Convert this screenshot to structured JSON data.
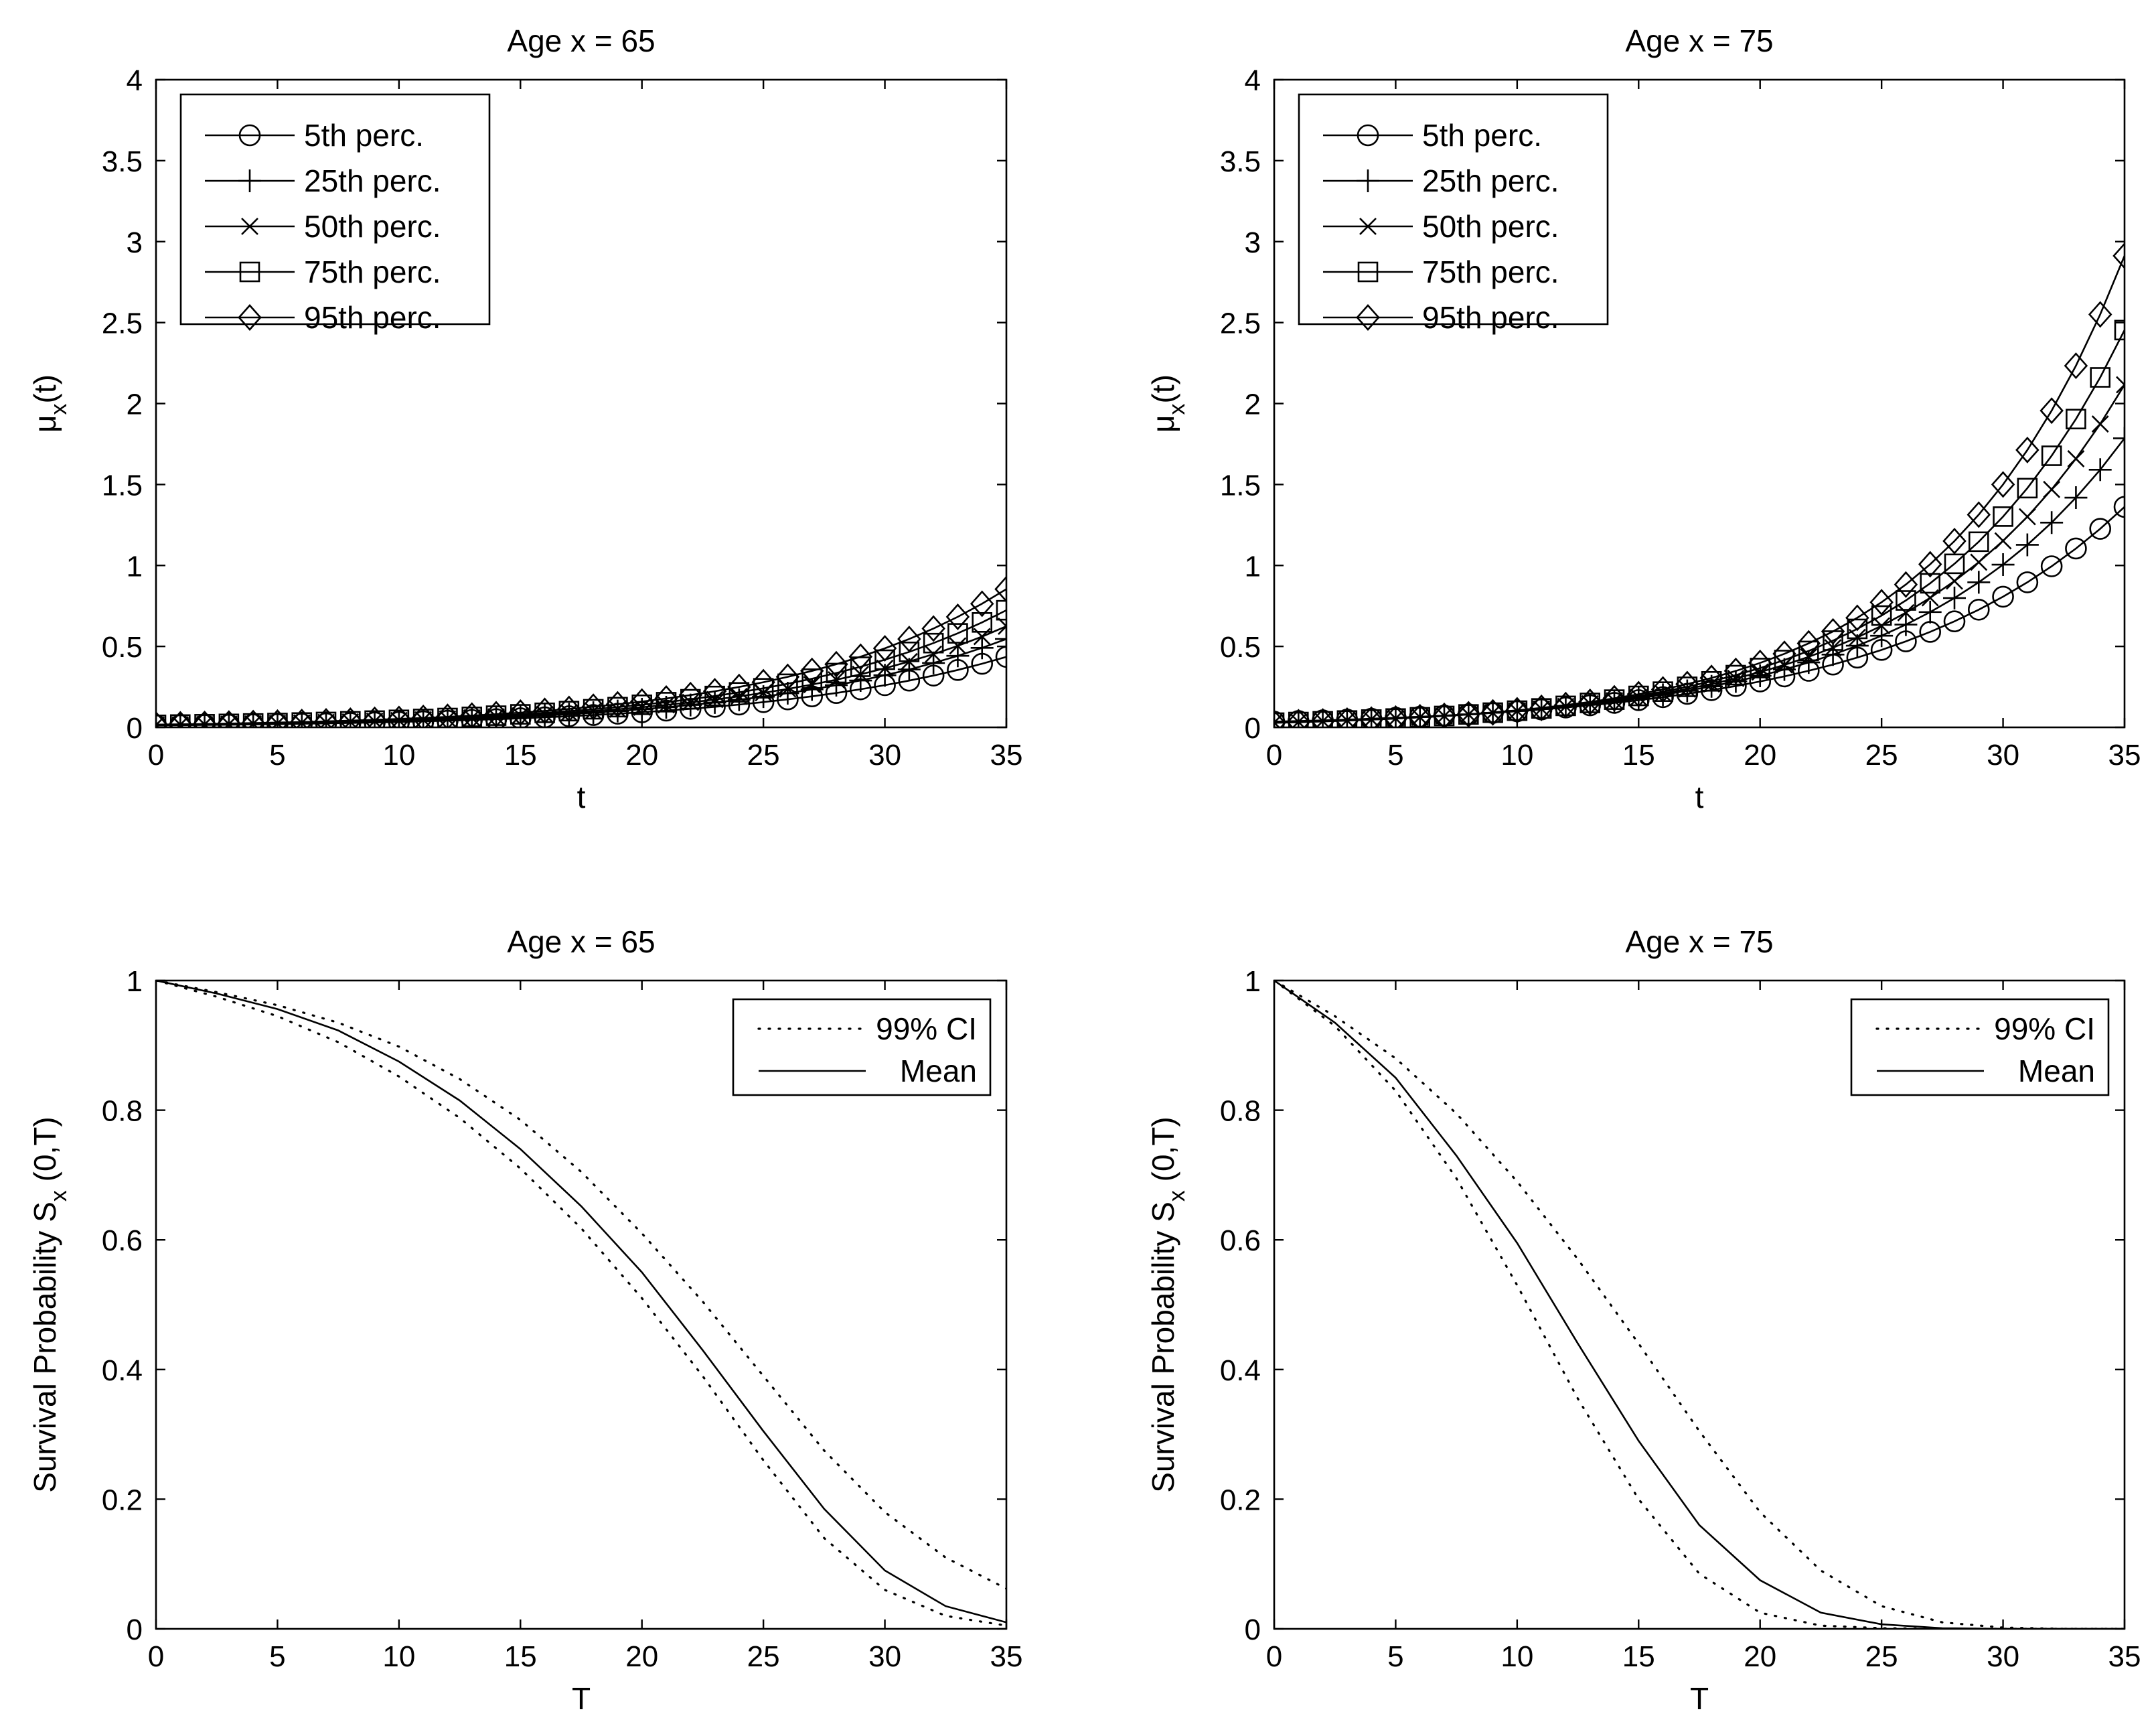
{
  "chart_data": [
    {
      "type": "line",
      "title": "Age x = 65",
      "xlabel": "t",
      "ylabel": {
        "base": "μ",
        "sub": "x",
        "rest": "(t)"
      },
      "xlim": [
        0,
        35
      ],
      "ylim": [
        0,
        4
      ],
      "xticks": [
        0,
        5,
        10,
        15,
        20,
        25,
        30,
        35
      ],
      "yticks": [
        0,
        0.5,
        1,
        1.5,
        2,
        2.5,
        3,
        3.5,
        4
      ],
      "legend_position": "top-left",
      "series": [
        {
          "name": "5th perc.",
          "marker": "circle",
          "line": "solid",
          "a": 0.012,
          "b": 0.1026
        },
        {
          "name": "25th perc.",
          "marker": "plus",
          "line": "solid",
          "a": 0.0135,
          "b": 0.1057
        },
        {
          "name": "50th perc.",
          "marker": "x",
          "line": "solid",
          "a": 0.0145,
          "b": 0.1075
        },
        {
          "name": "75th perc.",
          "marker": "square",
          "line": "solid",
          "a": 0.0155,
          "b": 0.1098
        },
        {
          "name": "95th perc.",
          "marker": "diamond",
          "line": "solid",
          "a": 0.017,
          "b": 0.1119
        }
      ]
    },
    {
      "type": "line",
      "title": "Age x = 75",
      "xlabel": "t",
      "ylabel": {
        "base": "μ",
        "sub": "x",
        "rest": "(t)"
      },
      "xlim": [
        0,
        35
      ],
      "ylim": [
        0,
        4
      ],
      "xticks": [
        0,
        5,
        10,
        15,
        20,
        25,
        30,
        35
      ],
      "yticks": [
        0,
        0.5,
        1,
        1.5,
        2,
        2.5,
        3,
        3.5,
        4
      ],
      "legend_position": "top-left",
      "series": [
        {
          "name": "5th perc.",
          "marker": "circle",
          "line": "solid",
          "a": 0.035,
          "b": 0.1046
        },
        {
          "name": "25th perc.",
          "marker": "plus",
          "line": "solid",
          "a": 0.032,
          "b": 0.1149
        },
        {
          "name": "50th perc.",
          "marker": "x",
          "line": "solid",
          "a": 0.03,
          "b": 0.1216
        },
        {
          "name": "75th perc.",
          "marker": "square",
          "line": "solid",
          "a": 0.029,
          "b": 0.1268
        },
        {
          "name": "95th perc.",
          "marker": "diamond",
          "line": "solid",
          "a": 0.028,
          "b": 0.1327
        }
      ]
    },
    {
      "type": "line",
      "title": "Age x = 65",
      "xlabel": "T",
      "ylabel": {
        "base": "Survival Probability  S",
        "sub": "x",
        "rest": " (0,T)"
      },
      "xlim": [
        0,
        35
      ],
      "ylim": [
        0,
        1
      ],
      "xticks": [
        0,
        5,
        10,
        15,
        20,
        25,
        30,
        35
      ],
      "yticks": [
        0,
        0.2,
        0.4,
        0.6,
        0.8,
        1
      ],
      "legend_position": "top-right",
      "series": [
        {
          "name": "99% CI",
          "line": "dotted",
          "x": [
            0,
            2.5,
            5,
            7.5,
            10,
            12.5,
            15,
            17.5,
            20,
            22.5,
            25,
            27.5,
            30,
            32.5,
            35
          ],
          "values": [
            1.0,
            0.975,
            0.945,
            0.905,
            0.852,
            0.788,
            0.71,
            0.618,
            0.51,
            0.39,
            0.26,
            0.14,
            0.06,
            0.02,
            0.005
          ]
        },
        {
          "name": "Mean",
          "line": "solid",
          "x": [
            0,
            2.5,
            5,
            7.5,
            10,
            12.5,
            15,
            17.5,
            20,
            22.5,
            25,
            27.5,
            30,
            32.5,
            35
          ],
          "values": [
            1.0,
            0.98,
            0.956,
            0.923,
            0.875,
            0.815,
            0.74,
            0.652,
            0.55,
            0.43,
            0.305,
            0.185,
            0.09,
            0.035,
            0.01
          ]
        },
        {
          "name": "99% CI",
          "line": "dotted",
          "x": [
            0,
            2.5,
            5,
            7.5,
            10,
            12.5,
            15,
            17.5,
            20,
            22.5,
            25,
            27.5,
            30,
            32.5,
            35
          ],
          "values": [
            1.0,
            0.982,
            0.962,
            0.935,
            0.898,
            0.848,
            0.785,
            0.705,
            0.61,
            0.505,
            0.39,
            0.275,
            0.18,
            0.11,
            0.062
          ]
        }
      ]
    },
    {
      "type": "line",
      "title": "Age x = 75",
      "xlabel": "T",
      "ylabel": {
        "base": "Survival Probability  S",
        "sub": "x",
        "rest": " (0,T)"
      },
      "xlim": [
        0,
        35
      ],
      "ylim": [
        0,
        1
      ],
      "xticks": [
        0,
        5,
        10,
        15,
        20,
        25,
        30,
        35
      ],
      "yticks": [
        0,
        0.2,
        0.4,
        0.6,
        0.8,
        1
      ],
      "legend_position": "top-right",
      "series": [
        {
          "name": "99% CI",
          "line": "dotted",
          "x": [
            0,
            2.5,
            5,
            7.5,
            10,
            12.5,
            15,
            17.5,
            20,
            22.5,
            25,
            27.5,
            30,
            32.5,
            35
          ],
          "values": [
            1.0,
            0.93,
            0.83,
            0.695,
            0.53,
            0.355,
            0.2,
            0.085,
            0.025,
            0.005,
            0.001,
            0.0,
            0.0,
            0.0,
            0.0
          ]
        },
        {
          "name": "Mean",
          "line": "solid",
          "x": [
            0,
            2.5,
            5,
            7.5,
            10,
            12.5,
            15,
            17.5,
            20,
            22.5,
            25,
            27.5,
            30,
            32.5,
            35
          ],
          "values": [
            1.0,
            0.935,
            0.85,
            0.73,
            0.595,
            0.44,
            0.29,
            0.16,
            0.075,
            0.025,
            0.007,
            0.001,
            0.0,
            0.0,
            0.0
          ]
        },
        {
          "name": "99% CI",
          "line": "dotted",
          "x": [
            0,
            2.5,
            5,
            7.5,
            10,
            12.5,
            15,
            17.5,
            20,
            22.5,
            25,
            27.5,
            30,
            32.5,
            35
          ],
          "values": [
            1.0,
            0.945,
            0.88,
            0.795,
            0.69,
            0.57,
            0.44,
            0.305,
            0.18,
            0.09,
            0.035,
            0.01,
            0.002,
            0.0,
            0.0
          ]
        }
      ]
    }
  ]
}
